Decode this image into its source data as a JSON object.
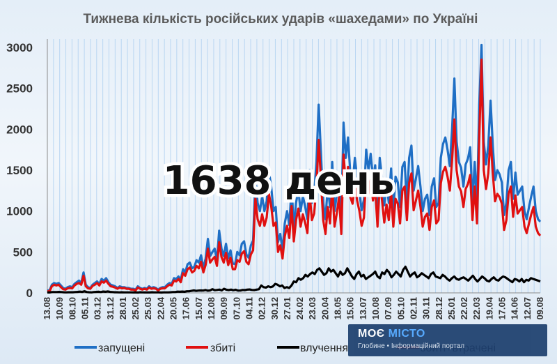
{
  "chart_data": {
    "type": "line",
    "title": "Тижнева кількість російських ударів «шахедами» по Україні",
    "overlay_text": "1638 день",
    "ylim": [
      0,
      3000
    ],
    "yticks": [
      0,
      500,
      1000,
      1500,
      2000,
      2500,
      3000
    ],
    "x_tick_labels": [
      "13.08",
      "10.09",
      "08.10",
      "05.11",
      "03.12",
      "31.12",
      "28.01",
      "25.02",
      "25.03",
      "22.04",
      "20.05",
      "17.06",
      "15.07",
      "12.08",
      "09.09",
      "07.10",
      "04.11",
      "02.12",
      "30.12",
      "27.01",
      "24.02",
      "23.03",
      "20.04",
      "18.05",
      "15.06",
      "13.07",
      "10.08",
      "07.09",
      "05.10",
      "02.11",
      "30.11",
      "28.12",
      "25.01",
      "22.02",
      "22.03",
      "19.04",
      "17.05",
      "14.06",
      "12.07",
      "09.08"
    ],
    "grid": "vertical",
    "legend_position": "bottom",
    "series": [
      {
        "name": "запущені",
        "color": "#1f6fc5",
        "values": [
          30,
          30,
          100,
          120,
          110,
          120,
          90,
          60,
          50,
          70,
          80,
          70,
          110,
          130,
          150,
          120,
          250,
          100,
          70,
          60,
          100,
          120,
          140,
          110,
          170,
          150,
          180,
          130,
          100,
          90,
          80,
          60,
          80,
          70,
          70,
          60,
          60,
          50,
          50,
          40,
          80,
          60,
          50,
          60,
          50,
          80,
          60,
          70,
          60,
          40,
          60,
          70,
          70,
          100,
          120,
          110,
          180,
          170,
          200,
          160,
          290,
          250,
          350,
          370,
          300,
          320,
          400,
          370,
          460,
          300,
          420,
          660,
          450,
          500,
          540,
          400,
          760,
          540,
          450,
          600,
          420,
          520,
          360,
          350,
          500,
          460,
          600,
          630,
          470,
          430,
          580,
          640,
          1400,
          1100,
          1000,
          1180,
          1000,
          1120,
          1480,
          1300,
          1000,
          1050,
          620,
          720,
          520,
          850,
          1000,
          830,
          1300,
          780,
          1100,
          1260,
          1000,
          1180,
          1060,
          900,
          1500,
          1100,
          1200,
          1600,
          2300,
          1700,
          1100,
          900,
          1300,
          1050,
          1600,
          1000,
          1200,
          1450,
          900,
          2080,
          1650,
          1900,
          1450,
          1340,
          1650,
          1400,
          1230,
          1010,
          1140,
          1750,
          1500,
          1700,
          1400,
          1560,
          1000,
          1650,
          1400,
          1070,
          1330,
          1100,
          1520,
          1000,
          1420,
          1350,
          1050,
          1540,
          1600,
          1100,
          1650,
          1800,
          1250,
          1400,
          1550,
          1300,
          1000,
          1150,
          1200,
          950,
          1300,
          1400,
          1050,
          1100,
          1650,
          1820,
          1900,
          1750,
          1550,
          2000,
          2620,
          1850,
          1600,
          1530,
          1300,
          1570,
          1640,
          1780,
          1100,
          1600,
          1050,
          2300,
          3030,
          1850,
          1570,
          1800,
          2350,
          1800,
          1380,
          1500,
          1450,
          1350,
          950,
          1100,
          1500,
          1600,
          1150,
          1470,
          1200,
          1250,
          1300,
          1000,
          900,
          1050,
          1180,
          1300,
          1000,
          900,
          870
        ]
      },
      {
        "name": "збиті",
        "color": "#e01010",
        "values": [
          20,
          20,
          80,
          100,
          90,
          100,
          70,
          45,
          40,
          55,
          60,
          55,
          90,
          110,
          120,
          100,
          210,
          80,
          55,
          50,
          85,
          100,
          120,
          90,
          140,
          125,
          150,
          110,
          80,
          75,
          65,
          50,
          65,
          55,
          60,
          50,
          50,
          40,
          40,
          30,
          65,
          50,
          40,
          50,
          40,
          65,
          50,
          55,
          50,
          30,
          50,
          55,
          55,
          80,
          100,
          90,
          150,
          140,
          170,
          130,
          240,
          210,
          290,
          310,
          250,
          270,
          330,
          300,
          380,
          250,
          340,
          540,
          370,
          410,
          440,
          330,
          620,
          440,
          370,
          490,
          340,
          430,
          290,
          290,
          400,
          380,
          480,
          510,
          380,
          350,
          470,
          520,
          1150,
          900,
          820,
          960,
          820,
          920,
          1210,
          1060,
          820,
          860,
          500,
          580,
          420,
          690,
          820,
          670,
          1060,
          630,
          890,
          1030,
          810,
          960,
          860,
          730,
          1220,
          890,
          970,
          1300,
          1870,
          1380,
          890,
          720,
          1050,
          850,
          1300,
          810,
          970,
          1170,
          720,
          1690,
          1340,
          1540,
          1170,
          1090,
          1340,
          1130,
          1000,
          820,
          920,
          1420,
          1210,
          1380,
          1130,
          1270,
          810,
          1340,
          1130,
          860,
          1080,
          890,
          1230,
          810,
          1150,
          1090,
          850,
          1250,
          1300,
          890,
          1340,
          1460,
          1010,
          1130,
          1250,
          1050,
          810,
          930,
          970,
          770,
          1050,
          1130,
          850,
          890,
          1340,
          1480,
          1540,
          1420,
          1250,
          1620,
          2120,
          1500,
          1300,
          1240,
          1050,
          1270,
          1330,
          1440,
          890,
          1300,
          850,
          1870,
          2850,
          1500,
          1270,
          1460,
          1900,
          1460,
          1120,
          1210,
          1170,
          1090,
          770,
          890,
          1210,
          1300,
          930,
          1190,
          970,
          1010,
          1050,
          810,
          730,
          850,
          960,
          1050,
          810,
          730,
          700
        ]
      },
      {
        "name": "влучення",
        "color": "#000000",
        "values": [
          5,
          5,
          10,
          10,
          10,
          12,
          10,
          8,
          6,
          8,
          8,
          8,
          10,
          12,
          15,
          12,
          20,
          10,
          8,
          6,
          10,
          12,
          14,
          10,
          16,
          14,
          18,
          12,
          10,
          8,
          8,
          6,
          8,
          6,
          6,
          6,
          6,
          5,
          5,
          4,
          8,
          6,
          5,
          6,
          5,
          8,
          6,
          6,
          6,
          4,
          6,
          6,
          6,
          8,
          10,
          10,
          15,
          14,
          16,
          14,
          20,
          20,
          25,
          30,
          25,
          28,
          30,
          28,
          35,
          26,
          30,
          45,
          32,
          36,
          40,
          30,
          50,
          38,
          34,
          40,
          32,
          38,
          28,
          28,
          36,
          34,
          40,
          42,
          36,
          34,
          40,
          44,
          90,
          70,
          65,
          80,
          70,
          78,
          110,
          100,
          80,
          90,
          60,
          70,
          60,
          90,
          140,
          130,
          180,
          160,
          180,
          220,
          200,
          230,
          250,
          230,
          280,
          300,
          260,
          220,
          240,
          300,
          260,
          280,
          240,
          200,
          260,
          220,
          240,
          300,
          250,
          200,
          170,
          230,
          260,
          200,
          220,
          170,
          190,
          210,
          230,
          260,
          200,
          180,
          250,
          230,
          280,
          250,
          190,
          220,
          260,
          230,
          200,
          280,
          320,
          260,
          200,
          230,
          250,
          190,
          210,
          240,
          220,
          200,
          180,
          230,
          250,
          200,
          190,
          180,
          220,
          200,
          170,
          150,
          180,
          200,
          170,
          160,
          180,
          190,
          170,
          150,
          180,
          210,
          170,
          140,
          170,
          200,
          180,
          150,
          140,
          170,
          190,
          160,
          150,
          180,
          200,
          190,
          170,
          150,
          130,
          170,
          160,
          140,
          170,
          130,
          160,
          150,
          180,
          170,
          160,
          150,
          140
        ]
      },
      {
        "name": "збиті+втрачені",
        "color": "#e01010",
        "values": []
      }
    ]
  },
  "branding": {
    "title_part1": "МОЄ ",
    "title_part2": "МІСТО",
    "subtitle": "Глобине • Інформаційний портал"
  },
  "colors": {
    "blue_series": "#1f6fc5",
    "red_series": "#e01010",
    "black_series": "#000000",
    "grid": "#b9d6f2",
    "brand_bg": "#1d3f6e"
  }
}
